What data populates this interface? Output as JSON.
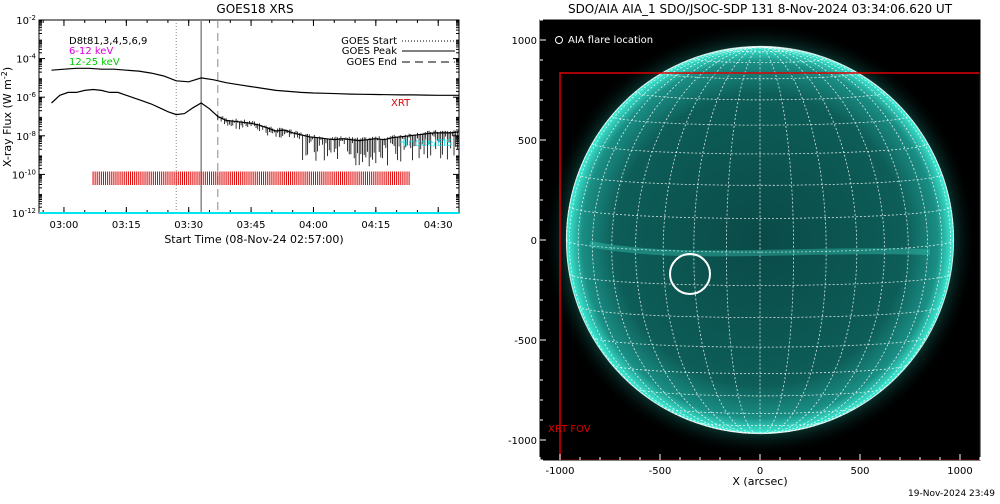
{
  "colors": {
    "black": "#000000",
    "red": "#e00000",
    "cyan": "#00e5ee",
    "magenta": "#e000e0",
    "green": "#00cc00",
    "solar_bg": "#000000",
    "solar_disk": "#0b5a55",
    "solar_limb": "#2fe0c8"
  },
  "chart_data": [
    {
      "type": "line",
      "title": "GOES18 XRS",
      "xlabel": "Start Time (08-Nov-24 02:57:00)",
      "ylabel": "X-ray Flux (W m^-2)",
      "ylabel_display": "X-ray Flux (W m",
      "ylabel_exp": "-2",
      "ylabel_close": ")",
      "yscale": "log",
      "ylim_exp": [
        -12,
        -2
      ],
      "y_ticks": [
        {
          "exp": -2,
          "label": "10",
          "sup": "-2"
        },
        {
          "exp": -4,
          "label": "10",
          "sup": "-4"
        },
        {
          "exp": -6,
          "label": "10",
          "sup": "-6"
        },
        {
          "exp": -8,
          "label": "10",
          "sup": "-8"
        },
        {
          "exp": -10,
          "label": "10",
          "sup": "-10"
        },
        {
          "exp": -12,
          "label": "10",
          "sup": "-12"
        }
      ],
      "x_ticks": [
        "03:00",
        "03:15",
        "03:30",
        "03:45",
        "04:00",
        "04:15",
        "04:30"
      ],
      "xlim_min": [
        -3,
        98
      ],
      "x_tick_min": [
        3,
        18,
        33,
        48,
        63,
        78,
        93
      ],
      "legend_left": [
        {
          "text": "D8t81,3,4,5,6,9",
          "color": "#000000"
        },
        {
          "text": "6-12 keV",
          "color": "#e000e0"
        },
        {
          "text": "12-25 keV",
          "color": "#00cc00"
        }
      ],
      "legend_right": [
        {
          "text": "GOES Start",
          "style": "dotted"
        },
        {
          "text": "GOES Peak",
          "style": "solid"
        },
        {
          "text": "GOES End",
          "style": "dashed"
        }
      ],
      "annotation_xrt": "XRT",
      "annotation_cyan": "Hinode/EIS",
      "event_lines_min": {
        "start": 30,
        "peak": 36,
        "end": 40
      },
      "series": [
        {
          "name": "",
          "color": "#000000",
          "x_min": [
            0,
            3,
            6,
            9,
            12,
            15,
            18,
            21,
            24,
            27,
            30,
            33,
            36,
            39,
            42,
            45,
            48,
            51,
            54,
            57,
            60,
            63,
            66,
            69,
            72,
            75,
            78,
            81,
            84,
            87,
            90,
            93,
            96,
            98
          ],
          "y_exp": [
            -4.6,
            -4.55,
            -4.5,
            -4.5,
            -4.55,
            -4.55,
            -4.6,
            -4.65,
            -4.75,
            -4.9,
            -5.15,
            -5.2,
            -5.0,
            -5.1,
            -5.25,
            -5.35,
            -5.45,
            -5.55,
            -5.65,
            -5.7,
            -5.75,
            -5.78,
            -5.8,
            -5.82,
            -5.84,
            -5.85,
            -5.86,
            -5.87,
            -5.88,
            -5.88,
            -5.89,
            -5.9,
            -5.9,
            -5.9
          ]
        },
        {
          "name": "",
          "color": "#000000",
          "x_min": [
            0,
            2,
            4,
            6,
            8,
            10,
            12,
            14,
            16,
            18,
            20,
            22,
            24,
            26,
            28,
            30,
            32,
            34,
            36,
            38,
            40,
            42,
            44,
            46,
            48,
            50,
            52,
            54,
            56,
            58,
            60,
            62,
            64,
            66,
            68,
            70,
            72,
            74,
            76,
            78,
            80,
            82,
            84,
            86,
            88,
            90,
            92,
            94,
            96,
            98
          ],
          "y_exp": [
            -6.3,
            -5.9,
            -5.75,
            -5.75,
            -5.65,
            -5.6,
            -5.65,
            -5.75,
            -5.75,
            -5.9,
            -6.05,
            -6.2,
            -6.35,
            -6.55,
            -6.75,
            -6.9,
            -6.85,
            -6.55,
            -6.3,
            -6.6,
            -7.0,
            -7.2,
            -7.25,
            -7.3,
            -7.35,
            -7.45,
            -7.6,
            -7.75,
            -7.7,
            -7.85,
            -7.95,
            -8.05,
            -8.1,
            -8.15,
            -8.2,
            -8.15,
            -8.2,
            -8.25,
            -8.2,
            -8.15,
            -8.2,
            -8.1,
            -8.05,
            -8.0,
            -7.95,
            -7.9,
            -7.85,
            -7.85,
            -7.85,
            -7.8
          ]
        },
        {
          "name": "",
          "color": "#00e5ee",
          "x_min": [
            -3,
            98
          ],
          "y_exp": [
            -12.0,
            -12.0
          ]
        }
      ],
      "xrt_ticks_min": {
        "start": 10,
        "end": 86,
        "step": 0.5,
        "y_center_exp": -10.2,
        "half_height_exp": 0.35
      }
    },
    {
      "type": "scatter",
      "title": "SDO/AIA AIA_1 SDO/JSOC-SDP 131  8-Nov-2024 03:34:06.620 UT",
      "xlabel": "X (arcsec)",
      "ylabel": "",
      "xlim": [
        -1100,
        1100
      ],
      "ylim": [
        -1100,
        1100
      ],
      "x_ticks": [
        -1000,
        -500,
        0,
        500,
        1000
      ],
      "x_tick_labels": [
        "-1000",
        "-500",
        "0",
        "500",
        "1000"
      ],
      "y_ticks": [
        1000,
        500,
        0,
        -500,
        -1000
      ],
      "y_tick_labels": [
        "1000",
        "500",
        "0",
        "-500",
        "-1000"
      ],
      "solar_radius_arcsec": 968,
      "legend_text": "AIA flare location",
      "flare_location": {
        "x": -350,
        "y": -170,
        "radius": 100
      },
      "xrt_fov": {
        "x0": -1000,
        "x1": 1100,
        "y0": -1100,
        "y1": 835,
        "label": "XRT FOV"
      }
    }
  ],
  "footer_timestamp": "19-Nov-2024 23:49"
}
